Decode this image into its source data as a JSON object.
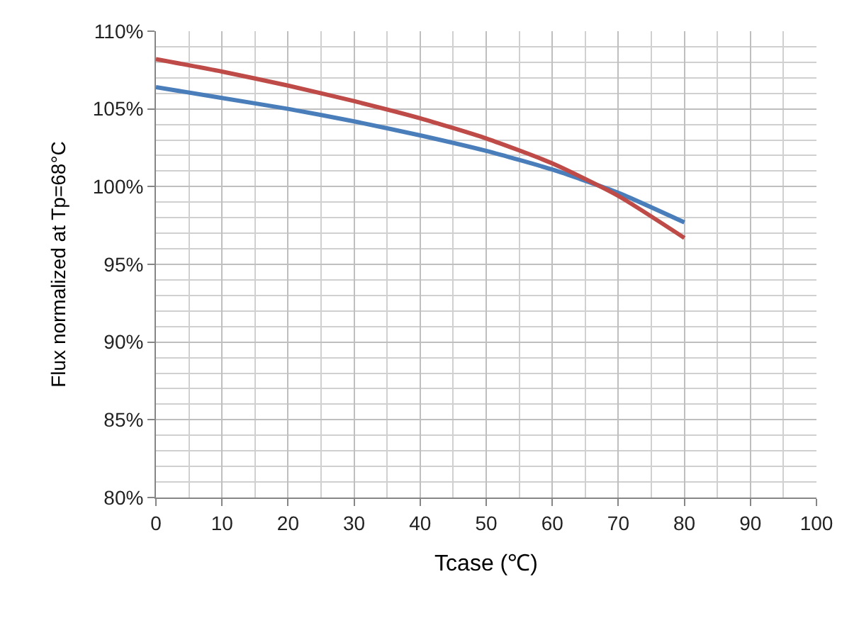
{
  "chart_data": {
    "type": "line",
    "xlabel": "Tcase (℃)",
    "ylabel": "Flux normalized at Tp=68°C",
    "x": [
      0,
      10,
      20,
      30,
      40,
      50,
      60,
      70,
      80
    ],
    "series": [
      {
        "color": "#4a7ebb",
        "values": [
          106.4,
          105.7,
          105.0,
          104.2,
          103.3,
          102.3,
          101.1,
          99.6,
          97.7
        ]
      },
      {
        "color": "#be4b48",
        "values": [
          108.2,
          107.4,
          106.5,
          105.5,
          104.4,
          103.1,
          101.5,
          99.4,
          96.7
        ]
      }
    ],
    "xlim": [
      0,
      100
    ],
    "xticks": [
      0,
      10,
      20,
      30,
      40,
      50,
      60,
      70,
      80,
      90,
      100
    ],
    "ylim": [
      80,
      110
    ],
    "yticks": [
      {
        "value": 80,
        "label": "80%"
      },
      {
        "value": 85,
        "label": "85%"
      },
      {
        "value": 90,
        "label": "90%"
      },
      {
        "value": 95,
        "label": "95%"
      },
      {
        "value": 100,
        "label": "100%"
      },
      {
        "value": 105,
        "label": "105%"
      },
      {
        "value": 110,
        "label": "110%"
      }
    ],
    "grid": true,
    "marker": "none",
    "line_style": "solid"
  }
}
